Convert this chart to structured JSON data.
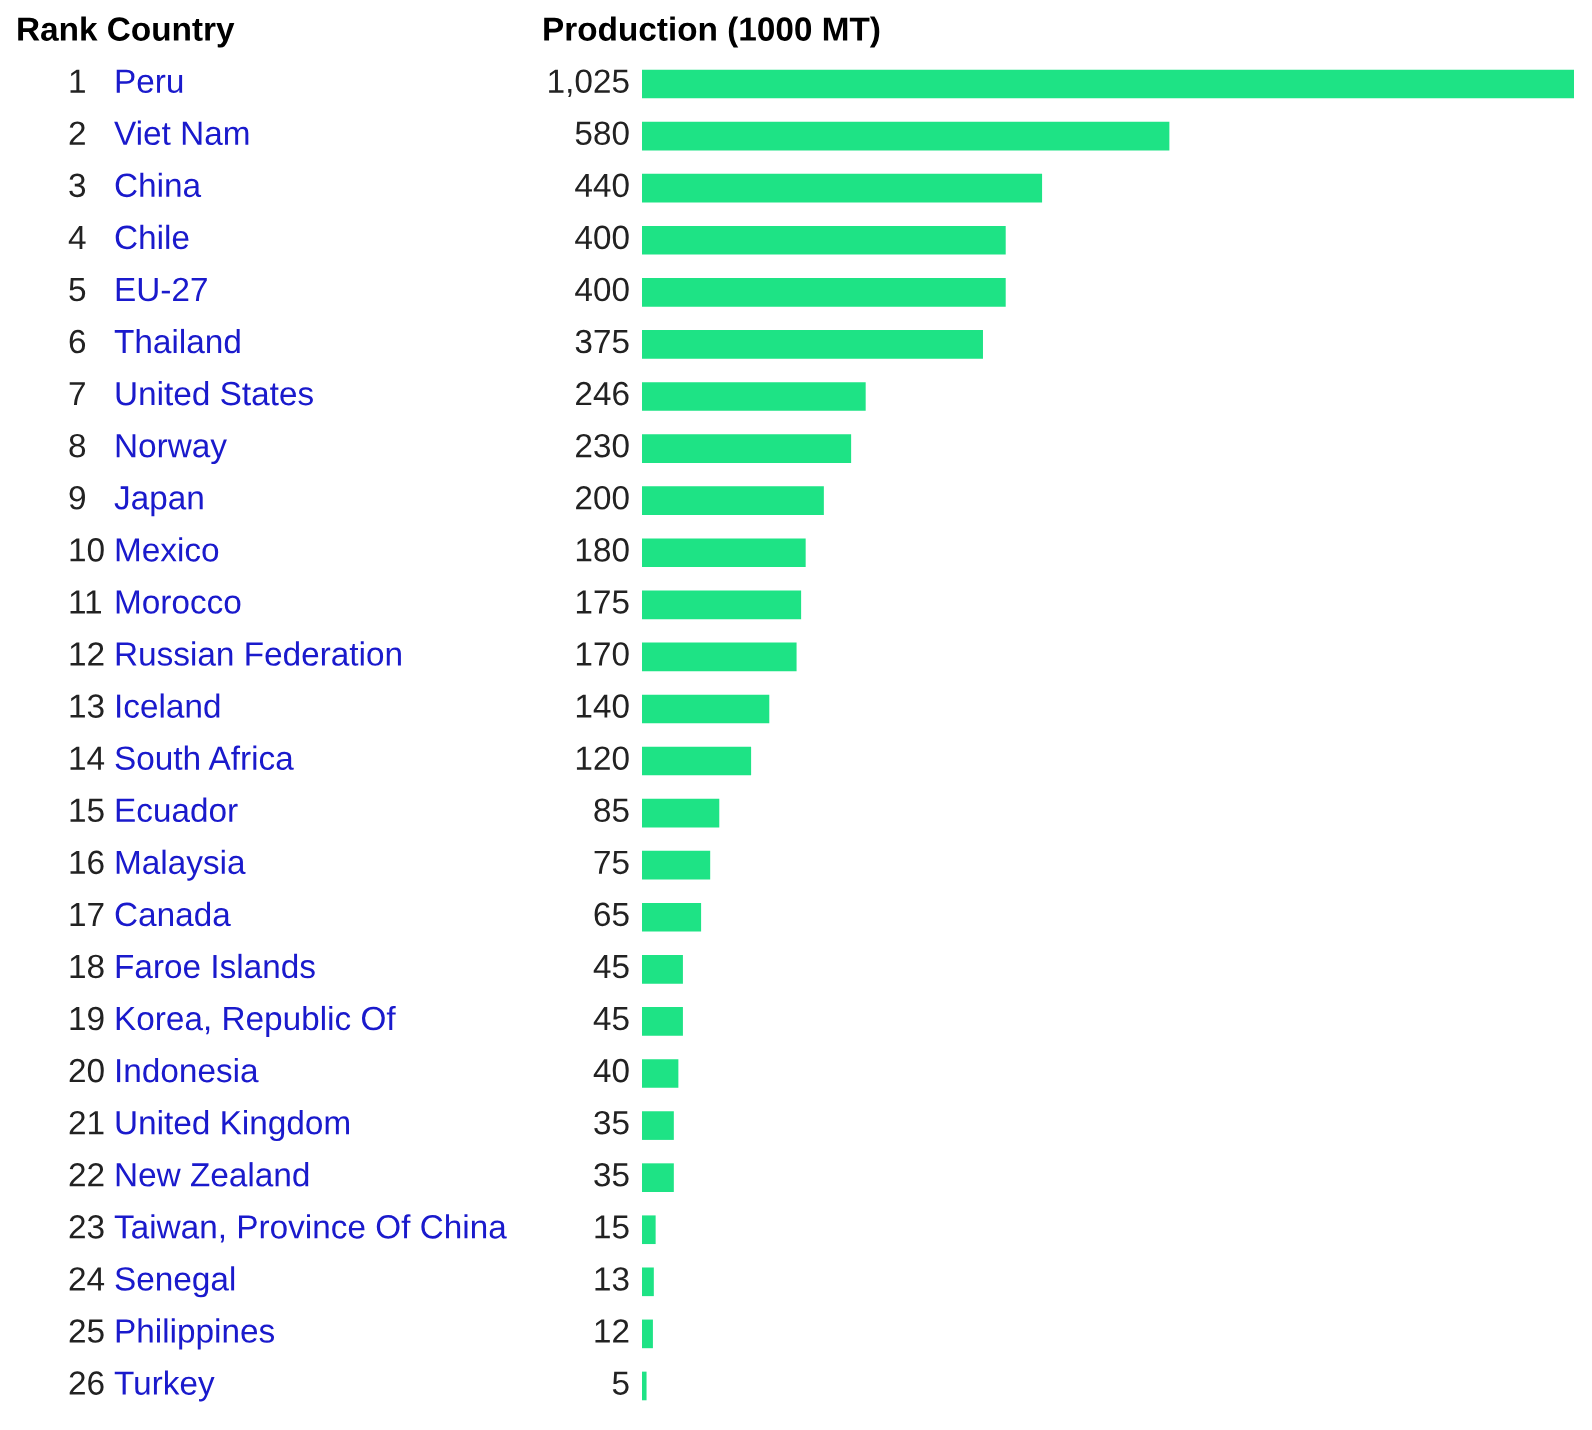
{
  "chart_data": {
    "type": "bar",
    "orientation": "horizontal",
    "ylabel": "Rank Country",
    "xlabel": "Production (1000 MT)",
    "categories": [
      "1 Peru",
      "2 Viet Nam",
      "3 China",
      "4 Chile",
      "5 EU-27",
      "6 Thailand",
      "7 United States",
      "8 Norway",
      "9 Japan",
      "10 Mexico",
      "11 Morocco",
      "12 Russian Federation",
      "13 Iceland",
      "14 South Africa",
      "15 Ecuador",
      "16 Malaysia",
      "17 Canada",
      "18 Faroe Islands",
      "19 Korea, Republic Of",
      "20 Indonesia",
      "21 United Kingdom",
      "22 New Zealand",
      "23 Taiwan, Province Of China",
      "24 Senegal",
      "25 Philippines",
      "26 Turkey"
    ],
    "values": [
      1025,
      580,
      440,
      400,
      400,
      375,
      246,
      230,
      200,
      180,
      175,
      170,
      140,
      120,
      85,
      75,
      65,
      45,
      45,
      40,
      35,
      35,
      15,
      13,
      12,
      5
    ],
    "value_labels": [
      "1,025",
      "580",
      "440",
      "400",
      "400",
      "375",
      "246",
      "230",
      "200",
      "180",
      "175",
      "170",
      "140",
      "120",
      "85",
      "75",
      "65",
      "45",
      "45",
      "40",
      "35",
      "35",
      "15",
      "13",
      "12",
      "5"
    ],
    "color": "#1ee385"
  }
}
